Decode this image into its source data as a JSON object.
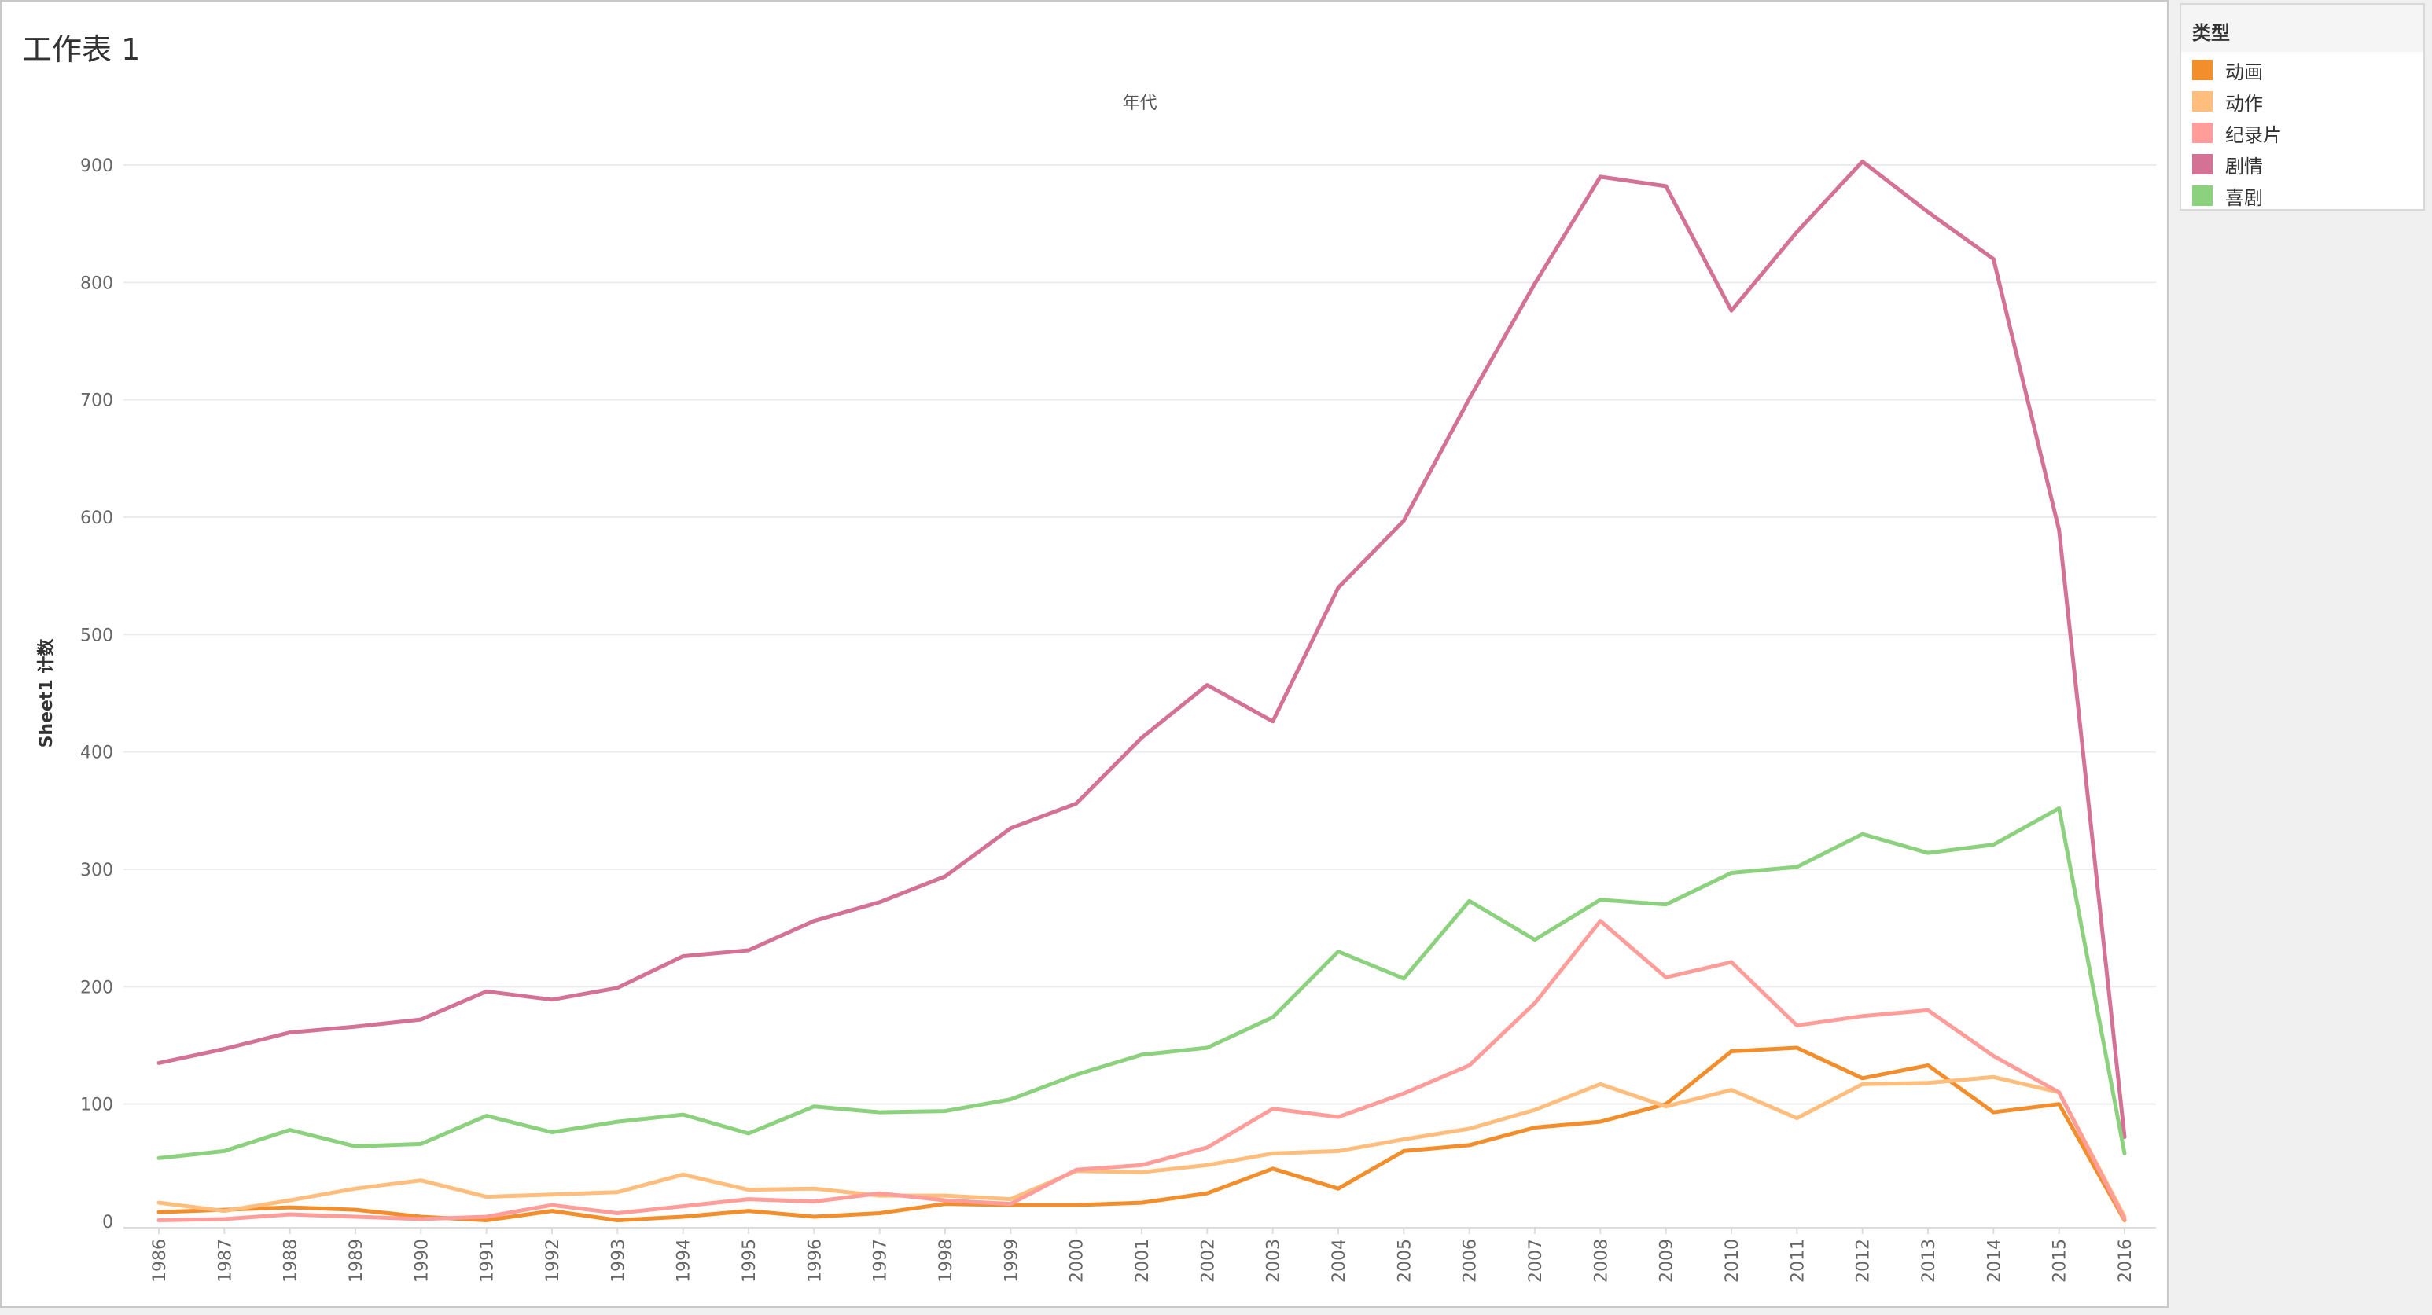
{
  "sheet": {
    "title": "工作表 1"
  },
  "legend": {
    "title": "类型"
  },
  "chart_data": {
    "type": "line",
    "title": "年代",
    "xlabel": "年代",
    "ylabel": "Sheet1 计数",
    "ylim": [
      0,
      900
    ],
    "yticks": [
      0,
      100,
      200,
      300,
      400,
      500,
      600,
      700,
      800,
      900
    ],
    "grid": true,
    "legend_position": "right",
    "categories": [
      "1986",
      "1987",
      "1988",
      "1989",
      "1990",
      "1991",
      "1992",
      "1993",
      "1994",
      "1995",
      "1996",
      "1997",
      "1998",
      "1999",
      "2000",
      "2001",
      "2002",
      "2003",
      "2004",
      "2005",
      "2006",
      "2007",
      "2008",
      "2009",
      "2010",
      "2011",
      "2012",
      "2013",
      "2014",
      "2015",
      "2016"
    ],
    "series": [
      {
        "name": "动画",
        "color": "#f28e2b",
        "values": [
          8,
          10,
          12,
          10,
          4,
          1,
          9,
          1,
          4,
          9,
          4,
          7,
          15,
          14,
          14,
          16,
          24,
          45,
          28,
          60,
          65,
          80,
          85,
          100,
          145,
          148,
          122,
          133,
          93,
          100,
          1
        ]
      },
      {
        "name": "动作",
        "color": "#ffbe7d",
        "values": [
          16,
          9,
          18,
          28,
          35,
          21,
          23,
          25,
          40,
          27,
          28,
          22,
          22,
          19,
          43,
          42,
          48,
          58,
          60,
          70,
          79,
          95,
          117,
          98,
          112,
          88,
          117,
          118,
          123,
          110,
          4
        ]
      },
      {
        "name": "纪录片",
        "color": "#ff9d9a",
        "values": [
          1,
          2,
          6,
          4,
          2,
          4,
          14,
          7,
          13,
          19,
          17,
          24,
          18,
          15,
          44,
          48,
          63,
          96,
          89,
          109,
          133,
          186,
          256,
          208,
          221,
          167,
          175,
          180,
          141,
          110,
          2
        ]
      },
      {
        "name": "剧情",
        "color": "#d37295",
        "values": [
          135,
          147,
          161,
          166,
          172,
          196,
          189,
          199,
          226,
          231,
          256,
          272,
          294,
          335,
          356,
          412,
          457,
          426,
          540,
          597,
          701,
          799,
          890,
          882,
          776,
          843,
          903,
          860,
          820,
          589,
          72
        ]
      },
      {
        "name": "喜剧",
        "color": "#8cd17d",
        "values": [
          54,
          60,
          78,
          64,
          66,
          90,
          76,
          85,
          91,
          75,
          98,
          93,
          94,
          104,
          125,
          142,
          148,
          174,
          230,
          207,
          273,
          240,
          274,
          270,
          297,
          302,
          330,
          314,
          321,
          352,
          58
        ]
      }
    ]
  }
}
